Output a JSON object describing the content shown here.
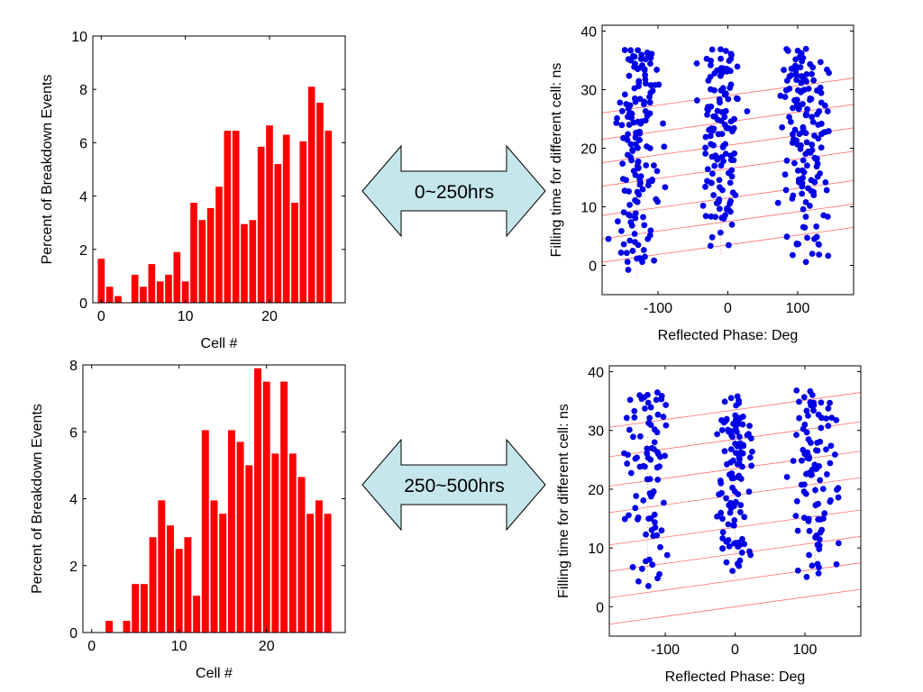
{
  "colors": {
    "bar": "#ff0000",
    "scatter": "#0000e6",
    "fitline": "#ff7070",
    "arrow_fill": "#c5e6ea",
    "arrow_stroke": "#000000"
  },
  "arrows": [
    {
      "label": "0~250hrs"
    },
    {
      "label": "250~500hrs"
    }
  ],
  "chart_data": [
    {
      "id": "hist-top",
      "type": "bar",
      "xlabel": "Cell #",
      "ylabel": "Percent of Breakdown Events",
      "xlim": [
        -1,
        29
      ],
      "ylim": [
        0,
        10
      ],
      "xticks": [
        0,
        10,
        20
      ],
      "yticks": [
        0,
        2,
        4,
        6,
        8,
        10
      ],
      "grid": false,
      "categories": [
        0,
        1,
        2,
        3,
        4,
        5,
        6,
        7,
        8,
        9,
        10,
        11,
        12,
        13,
        14,
        15,
        16,
        17,
        18,
        19,
        20,
        21,
        22,
        23,
        24,
        25,
        26,
        27
      ],
      "values": [
        1.65,
        0.6,
        0.25,
        0,
        1.05,
        0.6,
        1.45,
        0.8,
        1.05,
        1.9,
        0.8,
        3.75,
        3.1,
        3.55,
        4.35,
        6.45,
        6.45,
        2.95,
        3.1,
        5.85,
        6.65,
        5.2,
        6.3,
        3.75,
        6.05,
        8.1,
        7.5,
        6.45
      ]
    },
    {
      "id": "hist-bottom",
      "type": "bar",
      "xlabel": "Cell #",
      "ylabel": "Percent of Breakdown Events",
      "xlim": [
        -1,
        29
      ],
      "ylim": [
        0,
        8
      ],
      "xticks": [
        0,
        10,
        20
      ],
      "yticks": [
        0,
        2,
        4,
        6,
        8
      ],
      "grid": false,
      "categories": [
        0,
        1,
        2,
        3,
        4,
        5,
        6,
        7,
        8,
        9,
        10,
        11,
        12,
        13,
        14,
        15,
        16,
        17,
        18,
        19,
        20,
        21,
        22,
        23,
        24,
        25,
        26,
        27
      ],
      "values": [
        0,
        0,
        0.35,
        0,
        0.35,
        1.45,
        1.45,
        2.85,
        3.95,
        3.2,
        2.5,
        2.85,
        1.1,
        6.05,
        3.95,
        3.55,
        6.05,
        5.7,
        5.0,
        7.9,
        7.5,
        5.35,
        7.5,
        5.35,
        4.65,
        3.55,
        3.95,
        3.55
      ]
    },
    {
      "id": "scatter-top",
      "type": "scatter",
      "xlabel": "Reflected Phase: Deg",
      "ylabel": "Filling time for different cell: ns",
      "xlim": [
        -180,
        180
      ],
      "ylim": [
        -5,
        41
      ],
      "xticks": [
        -100,
        0,
        100
      ],
      "yticks": [
        0,
        10,
        20,
        30,
        40
      ],
      "grid": false,
      "fit_lines": {
        "slope": 0.0165,
        "intercepts": [
          3.5,
          7.5,
          11.5,
          16.5,
          20.5,
          24.5,
          29
        ]
      },
      "clusters": [
        {
          "center": -130,
          "spread": 28,
          "ymin": -2,
          "ymax": 37,
          "count": 150
        },
        {
          "center": -10,
          "spread": 25,
          "ymin": 2,
          "ymax": 37,
          "count": 130
        },
        {
          "center": 110,
          "spread": 32,
          "ymin": 0,
          "ymax": 37,
          "count": 155
        }
      ],
      "seed": 11
    },
    {
      "id": "scatter-bottom",
      "type": "scatter",
      "xlabel": "Reflected Phase: Deg",
      "ylabel": "Filling time for different cell: ns",
      "xlim": [
        -180,
        180
      ],
      "ylim": [
        -5,
        41
      ],
      "xticks": [
        -100,
        0,
        100
      ],
      "yticks": [
        0,
        10,
        20,
        30,
        40
      ],
      "grid": false,
      "fit_lines": {
        "slope": 0.0165,
        "intercepts": [
          0,
          4.5,
          9,
          13.5,
          19,
          23.5,
          28.5,
          33.5
        ]
      },
      "clusters": [
        {
          "center": -125,
          "spread": 28,
          "ymin": 3,
          "ymax": 37,
          "count": 85
        },
        {
          "center": 0,
          "spread": 20,
          "ymin": 5,
          "ymax": 36,
          "count": 110
        },
        {
          "center": 115,
          "spread": 30,
          "ymin": 5,
          "ymax": 37,
          "count": 100
        }
      ],
      "seed": 29
    }
  ]
}
